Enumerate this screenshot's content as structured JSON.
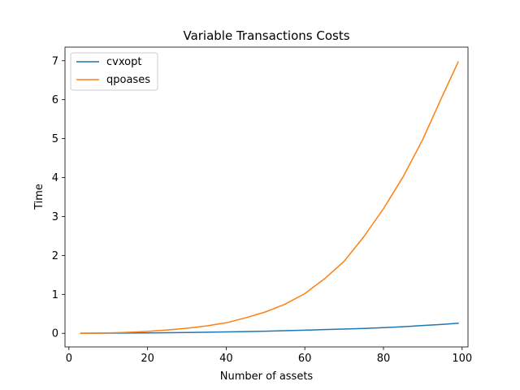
{
  "chart_data": {
    "type": "line",
    "title": "Variable Transactions Costs",
    "xlabel": "Number of assets",
    "ylabel": "Time",
    "xlim": [
      -1,
      101.5
    ],
    "ylim": [
      -0.35,
      7.35
    ],
    "xticks": [
      0,
      20,
      40,
      60,
      80,
      100
    ],
    "yticks": [
      0,
      1,
      2,
      3,
      4,
      5,
      6,
      7
    ],
    "grid": false,
    "legend_position": "upper-left",
    "x": [
      3,
      5,
      10,
      15,
      20,
      25,
      30,
      35,
      40,
      45,
      50,
      55,
      60,
      65,
      70,
      75,
      80,
      85,
      90,
      95,
      99
    ],
    "series": [
      {
        "name": "cvxopt",
        "color": "#1f77b4",
        "values": [
          0.001,
          0.002,
          0.004,
          0.007,
          0.01,
          0.014,
          0.02,
          0.027,
          0.035,
          0.045,
          0.055,
          0.067,
          0.08,
          0.095,
          0.11,
          0.125,
          0.145,
          0.17,
          0.2,
          0.23,
          0.26
        ]
      },
      {
        "name": "qpoases",
        "color": "#ff7f0e",
        "values": [
          0.001,
          0.003,
          0.01,
          0.025,
          0.05,
          0.085,
          0.13,
          0.19,
          0.27,
          0.4,
          0.55,
          0.75,
          1.02,
          1.4,
          1.85,
          2.48,
          3.2,
          4.02,
          4.98,
          6.1,
          6.97
        ]
      }
    ]
  }
}
